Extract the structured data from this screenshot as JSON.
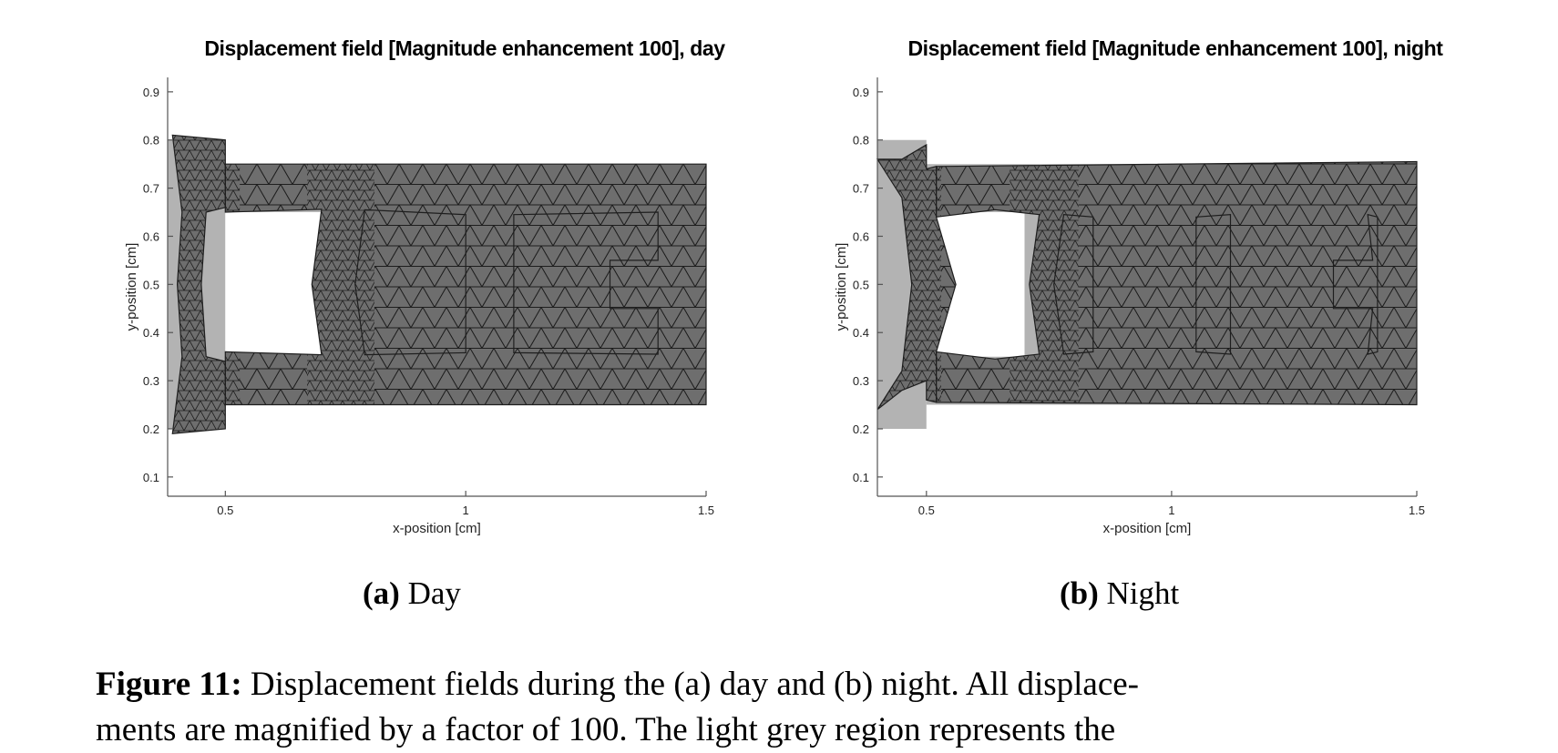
{
  "panels": [
    {
      "id": "a",
      "title": "Displacement field [Magnitude enhancement 100], day",
      "xlabel": "x-position [cm]",
      "ylabel": "y-position [cm]",
      "sublabel": "(a)",
      "subtitle": "Day"
    },
    {
      "id": "b",
      "title": "Displacement field [Magnitude enhancement 100], night",
      "xlabel": "x-position [cm]",
      "ylabel": "y-position [cm]",
      "sublabel": "(b)",
      "subtitle": "Night"
    }
  ],
  "caption": {
    "label": "Figure 11:",
    "line1": "Displacement fields during the (a) day and (b) night.  All displace-",
    "line2": "ments are magnified by a factor of 100.  The light grey region represents the"
  },
  "colors": {
    "undeformed": "#b3b3b3",
    "deformed": "#6e6e6e",
    "mesh": "#1e1e1e",
    "axis": "#555555"
  },
  "chart_data": [
    {
      "type": "mesh-plot",
      "panel": "a",
      "xlim": [
        0.38,
        1.5
      ],
      "ylim": [
        0.06,
        0.93
      ],
      "xticks": [
        0.5,
        1,
        1.5
      ],
      "xtick_labels": [
        "0.5",
        "1",
        "1.5"
      ],
      "yticks": [
        0.1,
        0.2,
        0.3,
        0.4,
        0.5,
        0.6,
        0.7,
        0.8,
        0.9
      ],
      "ytick_labels": [
        "0.1",
        "0.2",
        "0.3",
        "0.4",
        "0.5",
        "0.6",
        "0.7",
        "0.8",
        "0.9"
      ],
      "grid": false,
      "undeformed": [
        [
          [
            0.38,
            0.2
          ],
          [
            0.5,
            0.2
          ],
          [
            0.5,
            0.8
          ],
          [
            0.38,
            0.8
          ]
        ],
        [
          [
            0.5,
            0.25
          ],
          [
            1.5,
            0.25
          ],
          [
            1.5,
            0.75
          ],
          [
            0.5,
            0.75
          ]
        ],
        [
          [
            1.3,
            0.45
          ],
          [
            1.4,
            0.45
          ],
          [
            1.4,
            0.55
          ],
          [
            1.3,
            0.55
          ]
        ]
      ],
      "deformed": [
        [
          [
            0.39,
            0.19
          ],
          [
            0.5,
            0.2
          ],
          [
            0.5,
            0.34
          ],
          [
            0.46,
            0.35
          ],
          [
            0.45,
            0.5
          ],
          [
            0.46,
            0.65
          ],
          [
            0.5,
            0.66
          ],
          [
            0.5,
            0.8
          ],
          [
            0.39,
            0.81
          ],
          [
            0.41,
            0.65
          ],
          [
            0.4,
            0.5
          ],
          [
            0.41,
            0.35
          ]
        ],
        [
          [
            0.5,
            0.25
          ],
          [
            1.5,
            0.25
          ],
          [
            1.5,
            0.75
          ],
          [
            0.5,
            0.75
          ],
          [
            0.5,
            0.65
          ],
          [
            0.7,
            0.656
          ],
          [
            0.68,
            0.5
          ],
          [
            0.7,
            0.354
          ],
          [
            0.5,
            0.36
          ]
        ],
        [
          [
            0.79,
            0.354
          ],
          [
            1.0,
            0.358
          ],
          [
            1.0,
            0.645
          ],
          [
            0.79,
            0.655
          ],
          [
            0.77,
            0.5
          ]
        ],
        [
          [
            1.1,
            0.358
          ],
          [
            1.4,
            0.355
          ],
          [
            1.4,
            0.45
          ],
          [
            1.3,
            0.45
          ],
          [
            1.3,
            0.55
          ],
          [
            1.4,
            0.55
          ],
          [
            1.4,
            0.65
          ],
          [
            1.1,
            0.645
          ]
        ]
      ],
      "holes_undeformed": [
        [
          [
            0.5,
            0.35
          ],
          [
            0.7,
            0.35
          ],
          [
            0.7,
            0.65
          ],
          [
            0.5,
            0.65
          ]
        ],
        [
          [
            0.8,
            0.35
          ],
          [
            1.0,
            0.35
          ],
          [
            1.0,
            0.65
          ],
          [
            0.8,
            0.65
          ]
        ],
        [
          [
            1.1,
            0.35
          ],
          [
            1.4,
            0.35
          ],
          [
            1.4,
            0.65
          ],
          [
            1.1,
            0.65
          ]
        ]
      ]
    },
    {
      "type": "mesh-plot",
      "panel": "b",
      "xlim": [
        0.4,
        1.5
      ],
      "ylim": [
        0.06,
        0.93
      ],
      "xticks": [
        0.5,
        1,
        1.5
      ],
      "xtick_labels": [
        "0.5",
        "1",
        "1.5"
      ],
      "yticks": [
        0.1,
        0.2,
        0.3,
        0.4,
        0.5,
        0.6,
        0.7,
        0.8,
        0.9
      ],
      "ytick_labels": [
        "0.1",
        "0.2",
        "0.3",
        "0.4",
        "0.5",
        "0.6",
        "0.7",
        "0.8",
        "0.9"
      ],
      "grid": false,
      "undeformed": [
        [
          [
            0.4,
            0.2
          ],
          [
            0.5,
            0.2
          ],
          [
            0.5,
            0.8
          ],
          [
            0.4,
            0.8
          ]
        ],
        [
          [
            0.5,
            0.25
          ],
          [
            1.5,
            0.25
          ],
          [
            1.5,
            0.75
          ],
          [
            0.5,
            0.75
          ]
        ],
        [
          [
            1.3,
            0.45
          ],
          [
            1.4,
            0.45
          ],
          [
            1.4,
            0.55
          ],
          [
            1.3,
            0.55
          ]
        ]
      ],
      "deformed": [
        [
          [
            0.4,
            0.24
          ],
          [
            0.45,
            0.28
          ],
          [
            0.5,
            0.3
          ],
          [
            0.5,
            0.26
          ],
          [
            0.52,
            0.255
          ],
          [
            0.52,
            0.36
          ],
          [
            0.56,
            0.5
          ],
          [
            0.52,
            0.64
          ],
          [
            0.52,
            0.745
          ],
          [
            0.5,
            0.74
          ],
          [
            0.5,
            0.79
          ],
          [
            0.45,
            0.76
          ],
          [
            0.4,
            0.76
          ],
          [
            0.45,
            0.68
          ],
          [
            0.47,
            0.5
          ],
          [
            0.45,
            0.32
          ]
        ],
        [
          [
            0.52,
            0.255
          ],
          [
            1.5,
            0.25
          ],
          [
            1.5,
            0.755
          ],
          [
            0.52,
            0.745
          ],
          [
            0.52,
            0.64
          ],
          [
            0.64,
            0.655
          ],
          [
            0.73,
            0.645
          ],
          [
            0.71,
            0.5
          ],
          [
            0.73,
            0.355
          ],
          [
            0.64,
            0.345
          ],
          [
            0.52,
            0.36
          ]
        ],
        [
          [
            0.78,
            0.355
          ],
          [
            0.84,
            0.36
          ],
          [
            0.84,
            0.64
          ],
          [
            0.78,
            0.645
          ],
          [
            0.76,
            0.5
          ]
        ],
        [
          [
            1.05,
            0.36
          ],
          [
            1.12,
            0.355
          ],
          [
            1.12,
            0.645
          ],
          [
            1.05,
            0.64
          ]
        ],
        [
          [
            1.4,
            0.355
          ],
          [
            1.42,
            0.36
          ],
          [
            1.42,
            0.64
          ],
          [
            1.4,
            0.645
          ],
          [
            1.41,
            0.55
          ],
          [
            1.33,
            0.55
          ],
          [
            1.33,
            0.45
          ],
          [
            1.41,
            0.45
          ]
        ]
      ],
      "holes_undeformed": [
        [
          [
            0.5,
            0.35
          ],
          [
            0.7,
            0.35
          ],
          [
            0.7,
            0.65
          ],
          [
            0.5,
            0.65
          ]
        ],
        [
          [
            0.8,
            0.35
          ],
          [
            1.0,
            0.35
          ],
          [
            1.0,
            0.65
          ],
          [
            0.8,
            0.65
          ]
        ],
        [
          [
            1.1,
            0.35
          ],
          [
            1.4,
            0.35
          ],
          [
            1.4,
            0.65
          ],
          [
            1.1,
            0.65
          ]
        ]
      ]
    }
  ]
}
